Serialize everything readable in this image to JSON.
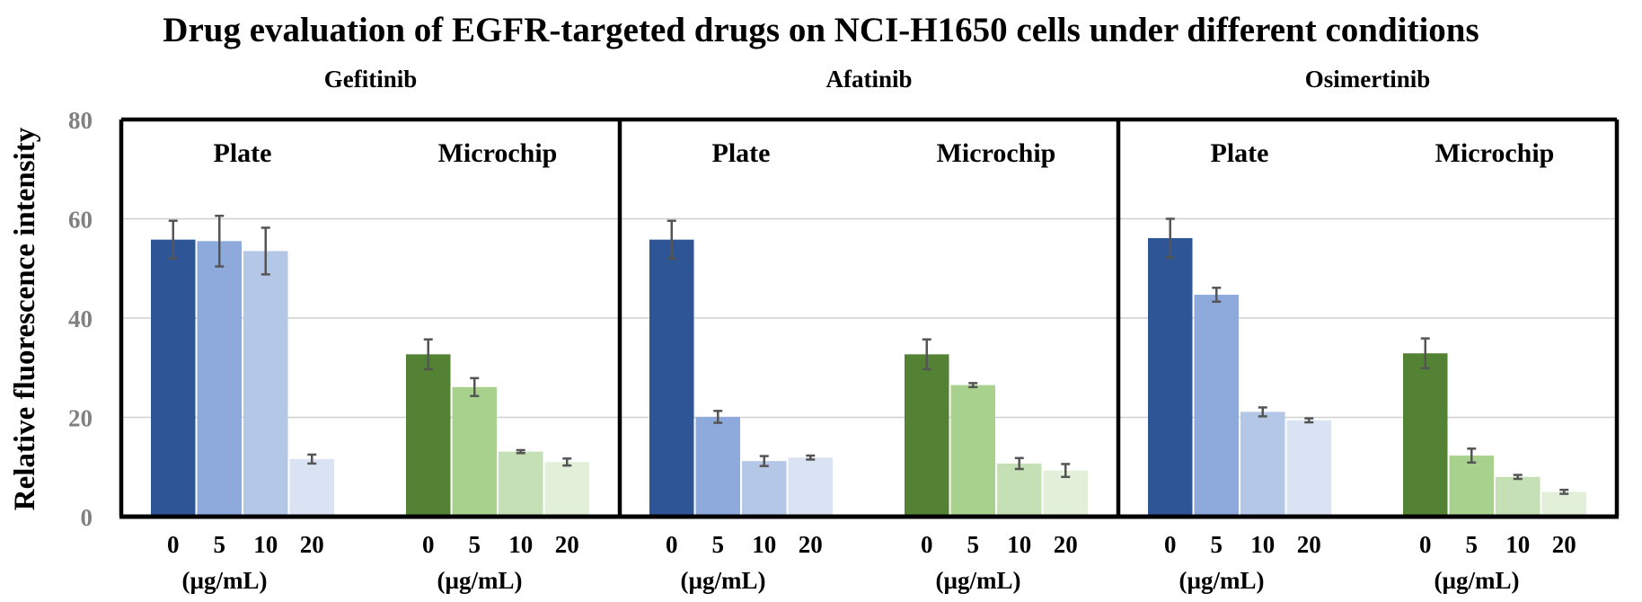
{
  "chart_data": {
    "type": "bar",
    "title": "Drug evaluation of EGFR-targeted drugs on NCI-H1650 cells under different conditions",
    "ylabel": "Relative fluorescence intensity",
    "ylim": [
      0,
      80
    ],
    "yticks": [
      0,
      20,
      40,
      60,
      80
    ],
    "grid": true,
    "unit_label": "(µg/mL)",
    "panels": [
      {
        "drug": "Gefitinib",
        "groups": [
          {
            "name": "Plate",
            "color_family": "blue",
            "concentrations": [
              "0",
              "5",
              "10",
              "20"
            ],
            "values": [
              55.8,
              55.5,
              53.5,
              11.6
            ],
            "errors": [
              3.8,
              5.1,
              4.7,
              0.9
            ]
          },
          {
            "name": "Microchip",
            "color_family": "green",
            "concentrations": [
              "0",
              "5",
              "10",
              "20"
            ],
            "values": [
              32.7,
              26.1,
              13.1,
              11.0
            ],
            "errors": [
              3.0,
              1.8,
              0.3,
              0.7
            ]
          }
        ]
      },
      {
        "drug": "Afatinib",
        "groups": [
          {
            "name": "Plate",
            "color_family": "blue",
            "concentrations": [
              "0",
              "5",
              "10",
              "20"
            ],
            "values": [
              55.8,
              20.1,
              11.2,
              11.9
            ],
            "errors": [
              3.8,
              1.2,
              1.0,
              0.4
            ]
          },
          {
            "name": "Microchip",
            "color_family": "green",
            "concentrations": [
              "0",
              "5",
              "10",
              "20"
            ],
            "values": [
              32.7,
              26.5,
              10.7,
              9.3
            ],
            "errors": [
              3.0,
              0.4,
              1.1,
              1.3
            ]
          }
        ]
      },
      {
        "drug": "Osimertinib",
        "groups": [
          {
            "name": "Plate",
            "color_family": "blue",
            "concentrations": [
              "0",
              "5",
              "10",
              "20"
            ],
            "values": [
              56.1,
              44.7,
              21.1,
              19.4
            ],
            "errors": [
              3.9,
              1.4,
              0.9,
              0.4
            ]
          },
          {
            "name": "Microchip",
            "color_family": "green",
            "concentrations": [
              "0",
              "5",
              "10",
              "20"
            ],
            "values": [
              32.9,
              12.3,
              8.0,
              5.0
            ],
            "errors": [
              3.0,
              1.4,
              0.4,
              0.4
            ]
          }
        ]
      }
    ],
    "colors": {
      "blue": [
        "#2e5596",
        "#8eaadc",
        "#b4c7e7",
        "#dae3f3"
      ],
      "green": [
        "#548235",
        "#a9d18e",
        "#c5e0b4",
        "#e2f0d9"
      ],
      "error_bar": "#555555",
      "grid": "#d0d0d0",
      "axis": "#000000",
      "tick_text": "#808080",
      "text": "#000000"
    }
  }
}
